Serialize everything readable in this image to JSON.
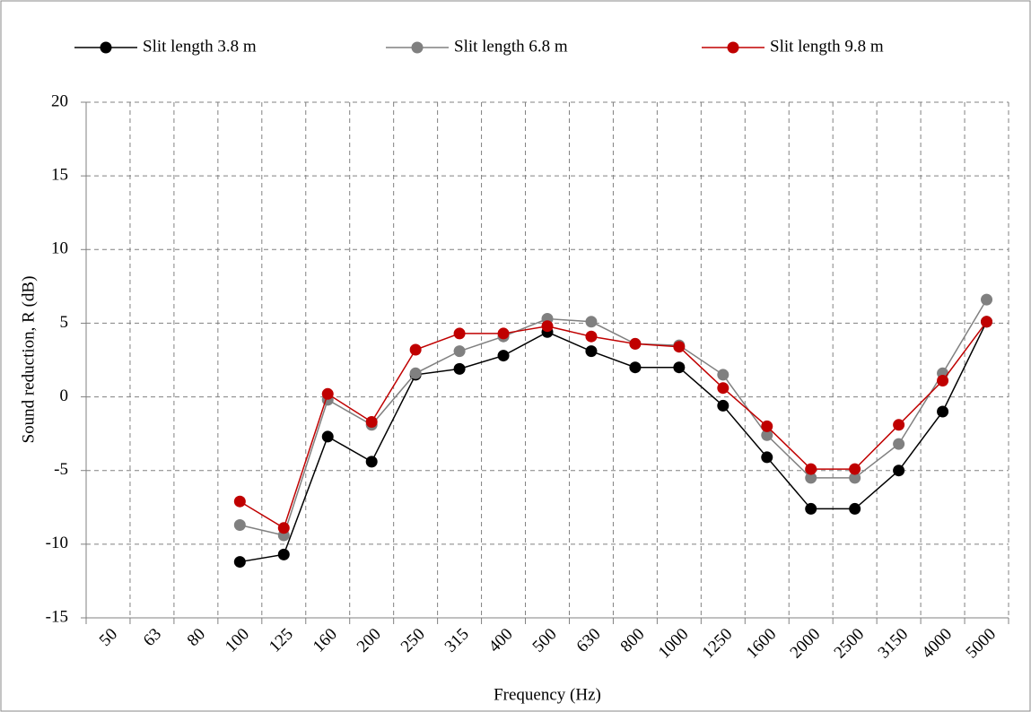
{
  "chart_data": {
    "type": "line",
    "x_label": "Frequency (Hz)",
    "y_label": "Sound reduction, R (dB)",
    "categories": [
      "50",
      "63",
      "80",
      "100",
      "125",
      "160",
      "200",
      "250",
      "315",
      "400",
      "500",
      "630",
      "800",
      "1000",
      "1250",
      "1600",
      "2000",
      "2500",
      "3150",
      "4000",
      "5000"
    ],
    "series": [
      {
        "name": "Slit length 3.8 m",
        "color": "#000000",
        "values": [
          null,
          null,
          null,
          -11.2,
          -10.7,
          -2.7,
          -4.4,
          1.5,
          1.9,
          2.8,
          4.4,
          3.1,
          2.0,
          2.0,
          -0.6,
          -4.1,
          -7.6,
          -7.6,
          -5.0,
          -1.0,
          5.1
        ]
      },
      {
        "name": "Slit length 6.8 m",
        "color": "#808080",
        "values": [
          null,
          null,
          null,
          -8.7,
          -9.4,
          -0.2,
          -1.9,
          1.6,
          3.1,
          4.1,
          5.3,
          5.1,
          3.6,
          3.5,
          1.5,
          -2.6,
          -5.5,
          -5.5,
          -3.2,
          1.6,
          6.6
        ]
      },
      {
        "name": "Slit length 9.8 m",
        "color": "#c00000",
        "values": [
          null,
          null,
          null,
          -7.1,
          -8.9,
          0.2,
          -1.7,
          3.2,
          4.3,
          4.3,
          4.8,
          4.1,
          3.6,
          3.4,
          0.6,
          -2.0,
          -4.9,
          -4.9,
          -1.9,
          1.1,
          5.1
        ]
      }
    ],
    "ylim": [
      -15,
      20
    ],
    "yticks": [
      -15,
      -10,
      -5,
      0,
      5,
      10,
      15,
      20
    ],
    "grid": true,
    "legend": "top"
  }
}
